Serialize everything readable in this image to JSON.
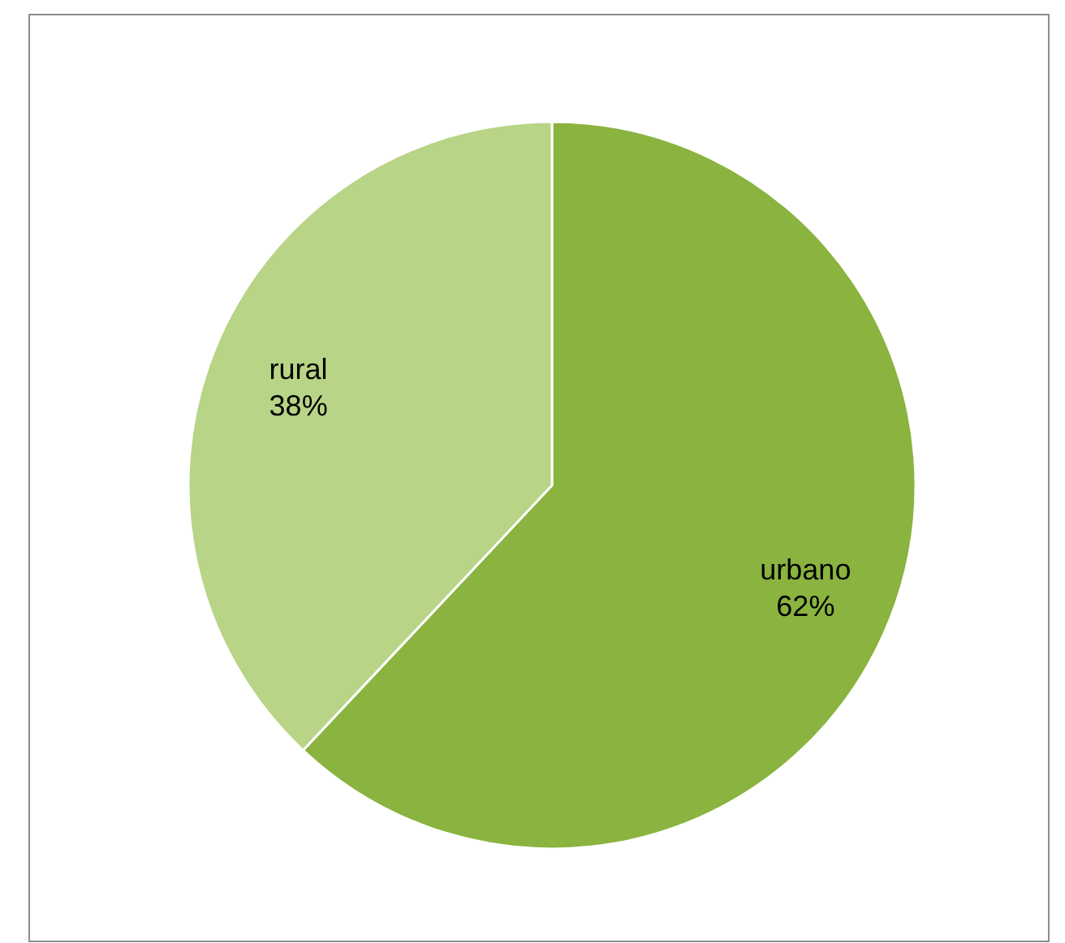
{
  "chart_data": {
    "type": "pie",
    "categories": [
      "urbano",
      "rural"
    ],
    "values": [
      62,
      38
    ],
    "colors": [
      "#8ab33f",
      "#b8d486"
    ],
    "value_labels": [
      "62%",
      "38%"
    ],
    "legend": false
  }
}
